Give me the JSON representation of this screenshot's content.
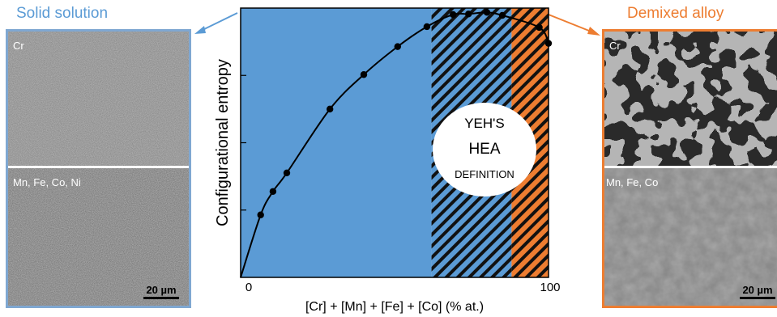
{
  "panels": {
    "left": {
      "title": "Solid solution",
      "top_label": "Cr",
      "bottom_label": "Mn, Fe, Co, Ni",
      "scale_bar": "20 µm"
    },
    "right": {
      "title": "Demixed alloy",
      "top_label": "Cr",
      "bottom_label": "Mn, Fe, Co",
      "scale_bar": "20 µm"
    }
  },
  "colors": {
    "solid": "#5b9bd5",
    "demixed": "#ed7d31",
    "curve": "#000000"
  },
  "chart_data": {
    "type": "line",
    "title": "",
    "xlabel": "[Cr] + [Mn] + [Fe] + [Co] (% at.)",
    "ylabel": "Configurational entropy",
    "xlim": [
      0,
      100
    ],
    "ylim": [
      0,
      1.0
    ],
    "x_ticks": [
      "0",
      "100"
    ],
    "y_ticks": [],
    "regions": [
      {
        "from": 0,
        "to": 62,
        "fill": "solid",
        "pattern": "none"
      },
      {
        "from": 62,
        "to": 88,
        "fill": "solid",
        "pattern": "hatched"
      },
      {
        "from": 88,
        "to": 100,
        "fill": "demixed",
        "pattern": "hatched"
      }
    ],
    "annotation": {
      "lines": [
        "YEH'S",
        "HEA",
        "DEFINITION"
      ]
    },
    "series": [
      {
        "x": [
          6.5,
          10.5,
          15,
          29,
          40,
          51,
          60.5,
          69,
          74,
          80,
          85,
          97,
          100
        ],
        "y": [
          0.232,
          0.319,
          0.388,
          0.625,
          0.753,
          0.857,
          0.931,
          0.976,
          0.978,
          0.984,
          0.973,
          0.928,
          0.869
        ]
      }
    ]
  }
}
